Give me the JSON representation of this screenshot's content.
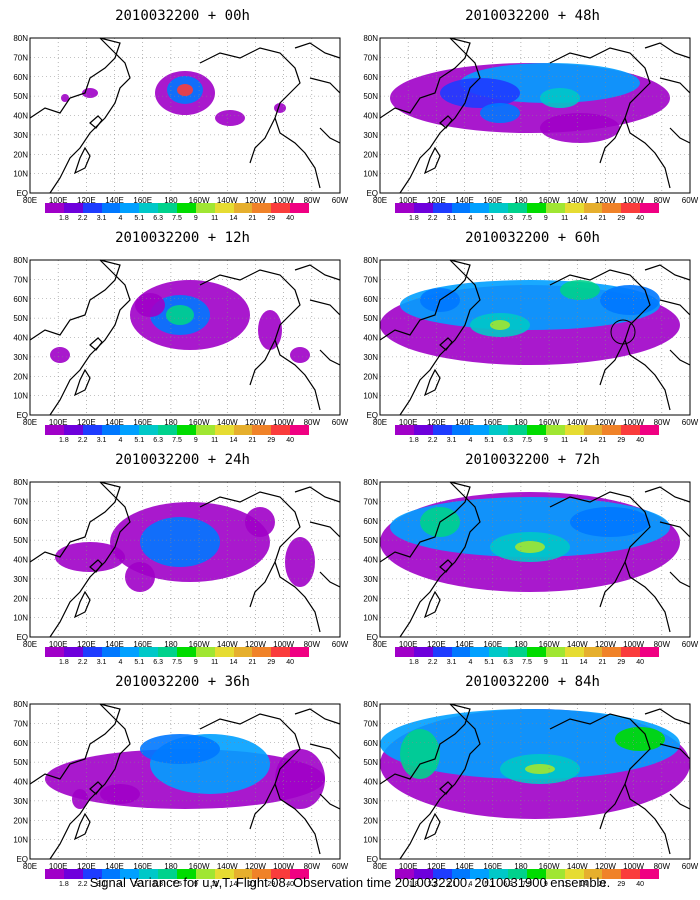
{
  "panels": [
    {
      "title": "2010032200 + 00h"
    },
    {
      "title": "2010032200 + 12h"
    },
    {
      "title": "2010032200 + 24h"
    },
    {
      "title": "2010032200 + 36h"
    },
    {
      "title": "2010032200 + 48h"
    },
    {
      "title": "2010032200 + 60h"
    },
    {
      "title": "2010032200 + 72h"
    },
    {
      "title": "2010032200 + 84h"
    }
  ],
  "lat_labels": [
    "80N",
    "70N",
    "60N",
    "50N",
    "40N",
    "30N",
    "20N",
    "10N",
    "EQ"
  ],
  "lon_labels": [
    "80E",
    "100E",
    "120E",
    "140E",
    "160E",
    "180",
    "160W",
    "140W",
    "120W",
    "100W",
    "80W",
    "60W"
  ],
  "colorbar": {
    "labels": [
      "1.8",
      "2.2",
      "3.1",
      "4",
      "5.1",
      "6.3",
      "7.5",
      "9",
      "11",
      "14",
      "21",
      "29",
      "40"
    ],
    "colors": [
      "#a000c8",
      "#6e00dc",
      "#1e3cff",
      "#0078ff",
      "#00a0ff",
      "#00c8c8",
      "#00d28c",
      "#00dc00",
      "#a0e632",
      "#e6dc32",
      "#e6af2d",
      "#f08228",
      "#fa3c3c",
      "#f00082"
    ]
  },
  "footer": "Signal Variance for u,v,T. Flight 08. Observation time 2010032200. 2010031900 ensemble."
}
